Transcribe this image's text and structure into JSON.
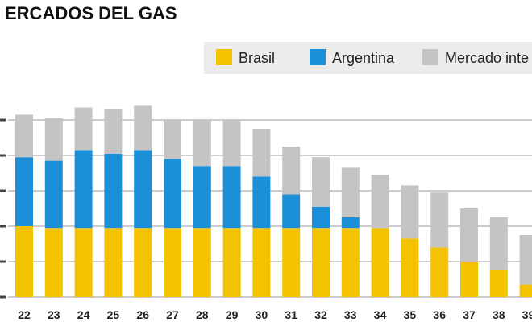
{
  "chart_data": {
    "type": "bar",
    "stacked": true,
    "title": "ERCADOS DEL GAS",
    "categories": [
      "22",
      "23",
      "24",
      "25",
      "26",
      "27",
      "28",
      "29",
      "30",
      "31",
      "32",
      "33",
      "34",
      "35",
      "36",
      "37",
      "38",
      "39"
    ],
    "series": [
      {
        "name": "Brasil",
        "color": "#f3c200",
        "values": [
          20,
          19.5,
          19.5,
          19.5,
          19.5,
          19.5,
          19.5,
          19.5,
          19.5,
          19.5,
          19.5,
          19.5,
          19.5,
          16.5,
          14,
          10,
          7.5,
          3.5
        ]
      },
      {
        "name": "Argentina",
        "color": "#1c8fd9",
        "values": [
          19.5,
          19,
          22,
          21,
          22,
          19.5,
          17.5,
          17.5,
          14.5,
          9.5,
          6,
          3,
          0,
          0,
          0,
          0,
          0,
          0
        ]
      },
      {
        "name": "Mercado inte",
        "color": "#c4c4c4",
        "values": [
          12,
          12,
          12,
          12.5,
          12.5,
          11,
          13,
          13,
          13.5,
          13.5,
          14,
          14,
          15,
          15,
          15.5,
          15,
          15,
          14
        ]
      }
    ],
    "y_range": [
      0,
      60
    ],
    "grid": true,
    "legend_position": "top-right"
  }
}
